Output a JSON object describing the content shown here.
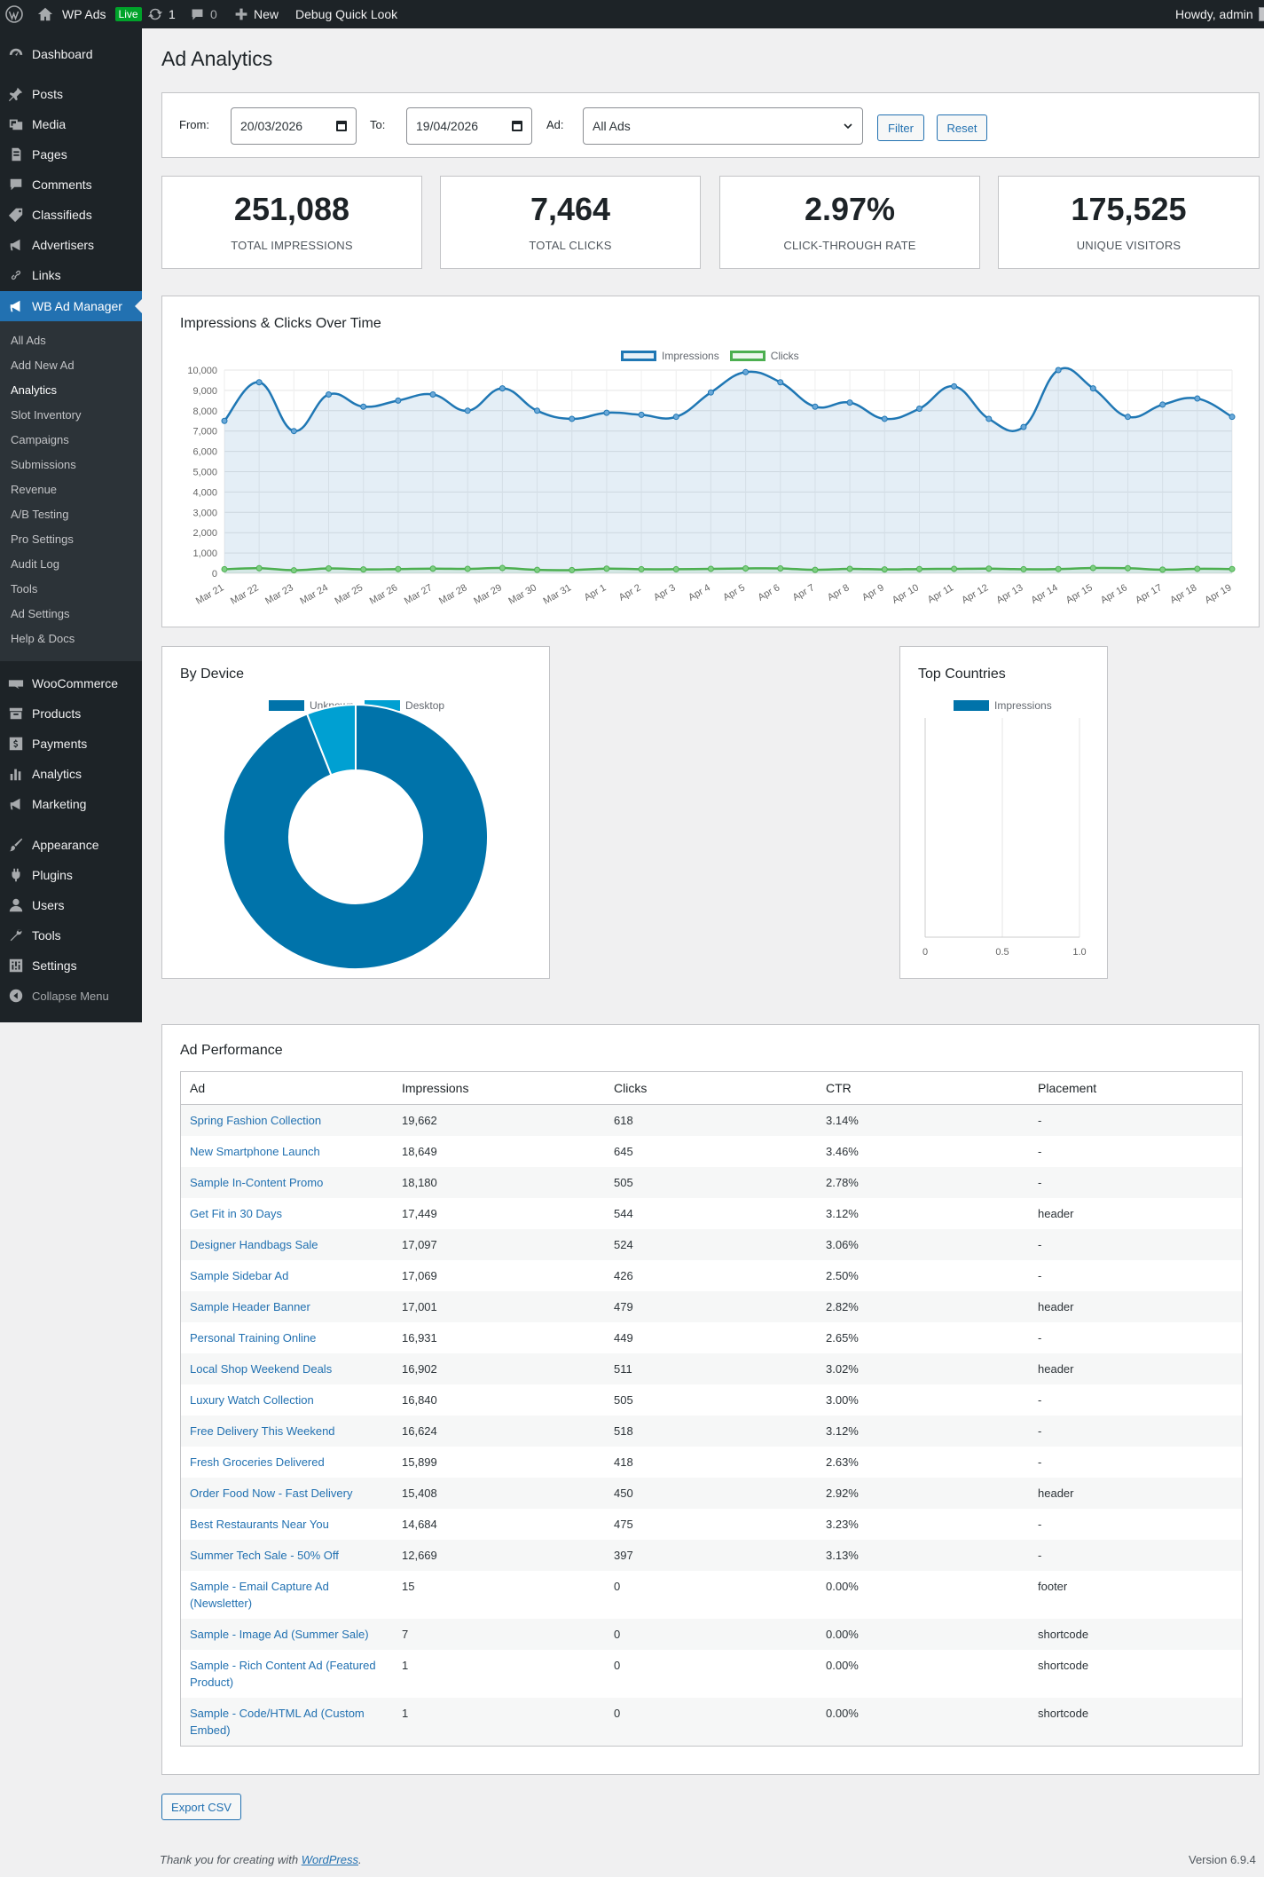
{
  "adminbar": {
    "site_name": "WP Ads",
    "live_badge": "Live",
    "updates_count": "1",
    "comments_count": "0",
    "new_label": "New",
    "debug_label": "Debug Quick Look",
    "howdy": "Howdy, admin"
  },
  "sidebar": {
    "items": [
      {
        "label": "Dashboard",
        "icon": "dashboard-icon"
      },
      {
        "label": "Posts",
        "icon": "pin-icon"
      },
      {
        "label": "Media",
        "icon": "media-icon"
      },
      {
        "label": "Pages",
        "icon": "pages-icon"
      },
      {
        "label": "Comments",
        "icon": "comment-icon"
      },
      {
        "label": "Classifieds",
        "icon": "tag-icon"
      },
      {
        "label": "Advertisers",
        "icon": "megaphone-icon"
      },
      {
        "label": "Links",
        "icon": "link-icon"
      },
      {
        "label": "WB Ad Manager",
        "icon": "megaphone-icon"
      },
      {
        "label": "WooCommerce",
        "icon": "woo-icon"
      },
      {
        "label": "Products",
        "icon": "archive-icon"
      },
      {
        "label": "Payments",
        "icon": "dollar-icon"
      },
      {
        "label": "Analytics",
        "icon": "chart-bar-icon"
      },
      {
        "label": "Marketing",
        "icon": "megaphone-icon"
      },
      {
        "label": "Appearance",
        "icon": "brush-icon"
      },
      {
        "label": "Plugins",
        "icon": "plug-icon"
      },
      {
        "label": "Users",
        "icon": "users-icon"
      },
      {
        "label": "Tools",
        "icon": "wrench-icon"
      },
      {
        "label": "Settings",
        "icon": "sliders-icon"
      }
    ],
    "submenu": [
      "All Ads",
      "Add New Ad",
      "Analytics",
      "Slot Inventory",
      "Campaigns",
      "Submissions",
      "Revenue",
      "A/B Testing",
      "Pro Settings",
      "Audit Log",
      "Tools",
      "Ad Settings",
      "Help & Docs"
    ],
    "collapse": "Collapse Menu"
  },
  "page": {
    "title": "Ad Analytics"
  },
  "filter": {
    "from_label": "From:",
    "from_value": "20/03/2026",
    "to_label": "To:",
    "to_value": "19/04/2026",
    "ad_label": "Ad:",
    "ad_value": "All Ads",
    "filter_btn": "Filter",
    "reset_btn": "Reset"
  },
  "stats": [
    {
      "value": "251,088",
      "label": "Total Impressions"
    },
    {
      "value": "7,464",
      "label": "Total Clicks"
    },
    {
      "value": "2.97%",
      "label": "Click-Through Rate"
    },
    {
      "value": "175,525",
      "label": "Unique Visitors"
    }
  ],
  "colors": {
    "accent": "#2271b1",
    "impressions": "#1f77b4",
    "clicks": "#4caf50",
    "unknown": "#0073aa",
    "desktop": "#00a0d2"
  },
  "chart_data": [
    {
      "type": "line",
      "title": "Impressions & Clicks Over Time",
      "x": [
        "Mar 21",
        "Mar 22",
        "Mar 23",
        "Mar 24",
        "Mar 25",
        "Mar 26",
        "Mar 27",
        "Mar 28",
        "Mar 29",
        "Mar 30",
        "Mar 31",
        "Apr 1",
        "Apr 2",
        "Apr 3",
        "Apr 4",
        "Apr 5",
        "Apr 6",
        "Apr 7",
        "Apr 8",
        "Apr 9",
        "Apr 10",
        "Apr 11",
        "Apr 12",
        "Apr 13",
        "Apr 14",
        "Apr 15",
        "Apr 16",
        "Apr 17",
        "Apr 18",
        "Apr 19"
      ],
      "series": [
        {
          "name": "Impressions",
          "values": [
            7500,
            9400,
            7000,
            8800,
            8200,
            8500,
            8800,
            8000,
            9100,
            8000,
            7600,
            7900,
            7800,
            7700,
            8900,
            9900,
            9400,
            8200,
            8400,
            7600,
            8100,
            9200,
            7600,
            7200,
            10000,
            9100,
            7700,
            8300,
            8600,
            7700
          ]
        },
        {
          "name": "Clicks",
          "values": [
            200,
            250,
            150,
            240,
            190,
            210,
            230,
            220,
            260,
            170,
            160,
            230,
            200,
            200,
            220,
            240,
            240,
            170,
            220,
            190,
            210,
            220,
            230,
            200,
            210,
            260,
            250,
            180,
            220,
            210
          ]
        }
      ],
      "ylim": [
        0,
        10000
      ],
      "yticks": [
        "10,000",
        "9,000",
        "8,000",
        "7,000",
        "6,000",
        "5,000",
        "4,000",
        "3,000",
        "2,000",
        "1,000",
        "0"
      ],
      "grid": true,
      "legend": "top"
    },
    {
      "type": "pie",
      "title": "By Device",
      "labels": [
        "Unknown",
        "Desktop"
      ],
      "values": [
        94,
        6
      ],
      "legend": "top"
    },
    {
      "type": "bar",
      "title": "Top Countries",
      "series": [
        {
          "name": "Impressions",
          "values": []
        }
      ],
      "xticks": [
        "0",
        "0.5",
        "1.0"
      ],
      "legend": "top"
    }
  ],
  "performance": {
    "title": "Ad Performance",
    "columns": [
      "Ad",
      "Impressions",
      "Clicks",
      "CTR",
      "Placement"
    ],
    "rows": [
      [
        "Spring Fashion Collection",
        "19,662",
        "618",
        "3.14%",
        "-"
      ],
      [
        "New Smartphone Launch",
        "18,649",
        "645",
        "3.46%",
        "-"
      ],
      [
        "Sample In-Content Promo",
        "18,180",
        "505",
        "2.78%",
        "-"
      ],
      [
        "Get Fit in 30 Days",
        "17,449",
        "544",
        "3.12%",
        "header"
      ],
      [
        "Designer Handbags Sale",
        "17,097",
        "524",
        "3.06%",
        "-"
      ],
      [
        "Sample Sidebar Ad",
        "17,069",
        "426",
        "2.50%",
        "-"
      ],
      [
        "Sample Header Banner",
        "17,001",
        "479",
        "2.82%",
        "header"
      ],
      [
        "Personal Training Online",
        "16,931",
        "449",
        "2.65%",
        "-"
      ],
      [
        "Local Shop Weekend Deals",
        "16,902",
        "511",
        "3.02%",
        "header"
      ],
      [
        "Luxury Watch Collection",
        "16,840",
        "505",
        "3.00%",
        "-"
      ],
      [
        "Free Delivery This Weekend",
        "16,624",
        "518",
        "3.12%",
        "-"
      ],
      [
        "Fresh Groceries Delivered",
        "15,899",
        "418",
        "2.63%",
        "-"
      ],
      [
        "Order Food Now - Fast Delivery",
        "15,408",
        "450",
        "2.92%",
        "header"
      ],
      [
        "Best Restaurants Near You",
        "14,684",
        "475",
        "3.23%",
        "-"
      ],
      [
        "Summer Tech Sale - 50% Off",
        "12,669",
        "397",
        "3.13%",
        "-"
      ],
      [
        "Sample - Email Capture Ad (Newsletter)",
        "15",
        "0",
        "0.00%",
        "footer"
      ],
      [
        "Sample - Image Ad (Summer Sale)",
        "7",
        "0",
        "0.00%",
        "shortcode"
      ],
      [
        "Sample - Rich Content Ad (Featured Product)",
        "1",
        "0",
        "0.00%",
        "shortcode"
      ],
      [
        "Sample - Code/HTML Ad (Custom Embed)",
        "1",
        "0",
        "0.00%",
        "shortcode"
      ]
    ],
    "export": "Export CSV"
  },
  "footer": {
    "text_before": "Thank you for creating with ",
    "link": "WordPress",
    "text_after": ".",
    "version": "Version 6.9.4"
  }
}
